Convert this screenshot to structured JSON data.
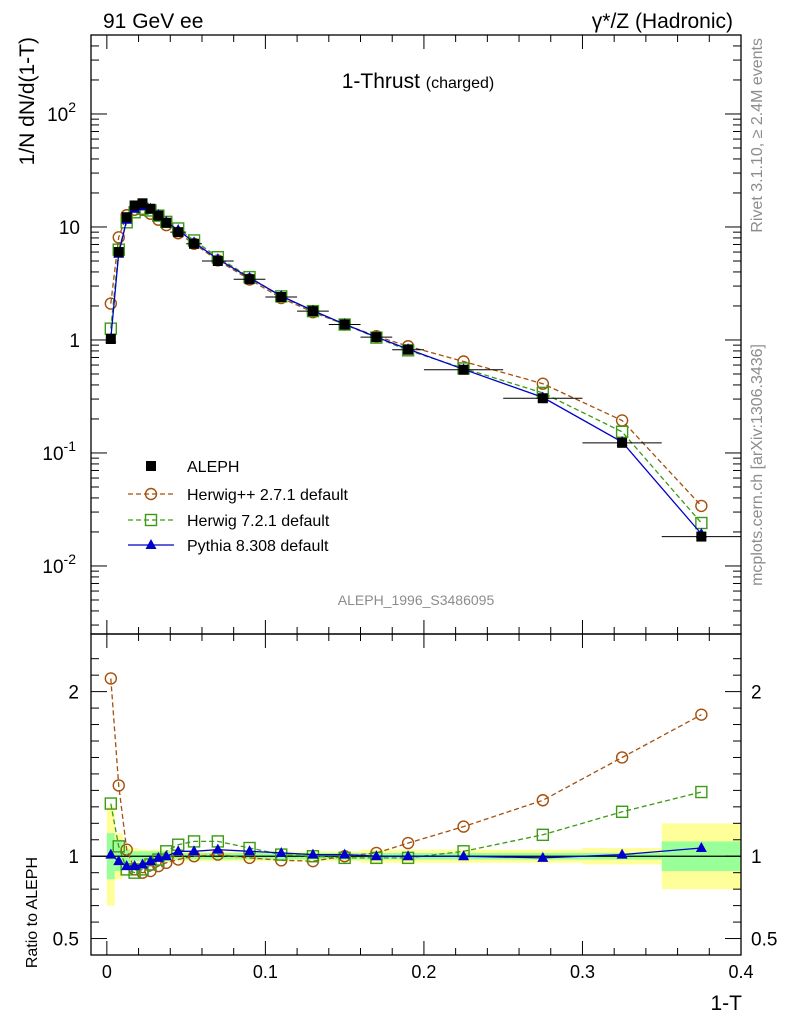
{
  "header": {
    "left": "91 GeV ee",
    "right": "γ*/Z (Hadronic)"
  },
  "side_text": {
    "rivet": "Rivet 3.1.10, ≥ 2.4M events",
    "mcplots": "mcplots.cern.ch [arXiv:1306.3436]"
  },
  "chart_data": {
    "type": "line",
    "title": "1-Thrust",
    "subtitle": "(charged)",
    "analysis_id": "ALEPH_1996_S3486095",
    "xlabel": "1-T",
    "ylabel": "1/N dN/d(1-T)",
    "ratio_ylabel": "Ratio to ALEPH",
    "xlim": [
      -0.01,
      0.4
    ],
    "ylim": [
      0.0025,
      500
    ],
    "y_scale": "log",
    "ratio_ylim": [
      0.4,
      2.35
    ],
    "x_ticks": [
      "0",
      "0.1",
      "0.2",
      "0.3",
      "0.4"
    ],
    "y_ticks": [
      "10^-2",
      "10^-1",
      "1",
      "10",
      "10^2"
    ],
    "ratio_ticks": [
      "0.5",
      "1",
      "2"
    ],
    "legend_position": "bottom-left",
    "colors": {
      "aleph": "#000000",
      "herwigpp": "#a5500c",
      "herwig7": "#3c9a14",
      "pythia": "#0000cc",
      "band_inner": "#99ff99",
      "band_outer": "#ffff99"
    },
    "x": [
      0.0025,
      0.0075,
      0.0125,
      0.0175,
      0.0225,
      0.0275,
      0.0325,
      0.0375,
      0.045,
      0.055,
      0.07,
      0.09,
      0.11,
      0.13,
      0.15,
      0.17,
      0.19,
      0.225,
      0.275,
      0.325,
      0.375
    ],
    "x_err": [
      0.0025,
      0.0025,
      0.0025,
      0.0025,
      0.0025,
      0.0025,
      0.0025,
      0.0025,
      0.005,
      0.005,
      0.01,
      0.01,
      0.01,
      0.01,
      0.01,
      0.01,
      0.01,
      0.025,
      0.025,
      0.025,
      0.025
    ],
    "series": [
      {
        "name": "ALEPH",
        "key": "aleph",
        "values": [
          1.02,
          6.0,
          12.2,
          15.5,
          16.2,
          14.5,
          12.6,
          10.9,
          9.0,
          7.1,
          5.0,
          3.45,
          2.4,
          1.8,
          1.37,
          1.06,
          0.82,
          0.545,
          0.305,
          0.123,
          0.0182
        ],
        "ratio": [
          1,
          1,
          1,
          1,
          1,
          1,
          1,
          1,
          1,
          1,
          1,
          1,
          1,
          1,
          1,
          1,
          1,
          1,
          1,
          1,
          1
        ]
      },
      {
        "name": "Herwig++ 2.7.1 default",
        "key": "herwigpp",
        "values": [
          2.1,
          8.1,
          12.7,
          14.2,
          14.2,
          13.1,
          11.6,
          10.4,
          8.8,
          7.1,
          5.06,
          3.43,
          2.35,
          1.76,
          1.37,
          1.08,
          0.88,
          0.645,
          0.41,
          0.194,
          0.034
        ],
        "ratio": [
          2.08,
          1.43,
          1.04,
          0.92,
          0.9,
          0.91,
          0.94,
          0.96,
          0.98,
          1.0,
          1.01,
          0.99,
          0.975,
          0.97,
          1.0,
          1.02,
          1.08,
          1.18,
          1.34,
          1.6,
          1.86
        ]
      },
      {
        "name": "Herwig 7.2.1 default",
        "key": "herwig7",
        "values": [
          1.26,
          6.3,
          11.0,
          13.5,
          14.5,
          14.0,
          12.6,
          11.1,
          9.7,
          7.6,
          5.4,
          3.6,
          2.43,
          1.8,
          1.37,
          1.05,
          0.81,
          0.56,
          0.34,
          0.154,
          0.024
        ],
        "ratio": [
          1.32,
          1.06,
          0.92,
          0.9,
          0.92,
          0.95,
          0.98,
          1.03,
          1.07,
          1.09,
          1.09,
          1.05,
          1.01,
          1.0,
          0.99,
          0.99,
          0.99,
          1.03,
          1.13,
          1.27,
          1.39
        ]
      },
      {
        "name": "Pythia 8.308 default",
        "key": "pythia",
        "values": [
          1.03,
          5.8,
          11.6,
          14.5,
          15.3,
          14.5,
          12.8,
          11.1,
          9.4,
          7.3,
          5.2,
          3.55,
          2.45,
          1.82,
          1.38,
          1.06,
          0.83,
          0.55,
          0.31,
          0.125,
          0.0192
        ],
        "ratio": [
          1.01,
          0.97,
          0.94,
          0.94,
          0.95,
          0.97,
          0.99,
          1.0,
          1.03,
          1.03,
          1.04,
          1.03,
          1.02,
          1.01,
          1.01,
          1.0,
          1.0,
          1.0,
          0.99,
          1.01,
          1.05
        ]
      }
    ],
    "ratio_band": {
      "inner": [
        0.14,
        0.09,
        0.04,
        0.03,
        0.03,
        0.03,
        0.03,
        0.03,
        0.02,
        0.02,
        0.02,
        0.02,
        0.02,
        0.02,
        0.02,
        0.02,
        0.02,
        0.02,
        0.02,
        0.02,
        0.09
      ],
      "outer": [
        0.3,
        0.14,
        0.06,
        0.05,
        0.04,
        0.04,
        0.04,
        0.04,
        0.03,
        0.03,
        0.03,
        0.03,
        0.03,
        0.03,
        0.03,
        0.04,
        0.04,
        0.04,
        0.04,
        0.05,
        0.2
      ]
    }
  }
}
